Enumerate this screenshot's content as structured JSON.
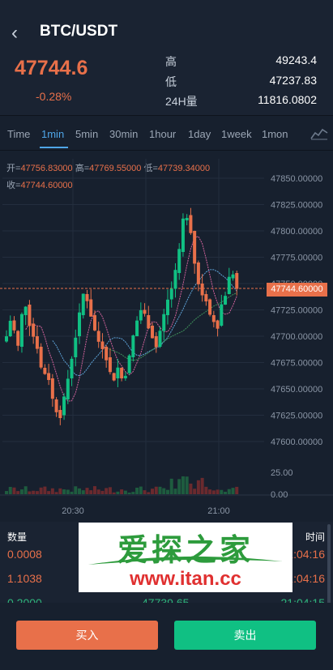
{
  "header": {
    "pair": "BTC/USDT",
    "price": "47744.6",
    "change": "-0.28%",
    "stats": [
      {
        "label": "高",
        "value": "49243.4"
      },
      {
        "label": "低",
        "value": "47237.83"
      },
      {
        "label": "24H量",
        "value": "11816.0802"
      }
    ]
  },
  "tabs": [
    "Time",
    "1min",
    "5min",
    "30min",
    "1hour",
    "1day",
    "1week",
    "1mon"
  ],
  "active_tab": "1min",
  "ohlc": {
    "open_label": "开=",
    "open": "47756.83000",
    "high_label": "高=",
    "high": "47769.55000",
    "low_label": "低=",
    "low": "47739.34000",
    "close_label": "收=",
    "close": "47744.60000"
  },
  "chart_data": {
    "type": "candlestick",
    "y_ticks": [
      "47850.00000",
      "47825.00000",
      "47800.00000",
      "47775.00000",
      "47750.00000",
      "47725.00000",
      "47700.00000",
      "47675.00000",
      "47650.00000",
      "47625.00000",
      "47600.00000"
    ],
    "ylim": [
      47600,
      47850
    ],
    "current_price_label": "47744.60000",
    "volume_ticks": [
      "25.00",
      "0.00"
    ],
    "x_ticks": [
      "20:30",
      "21:00"
    ],
    "grid": true
  },
  "trades": {
    "headers": {
      "qty": "数量",
      "time": "时间"
    },
    "rows": [
      {
        "qty": "0.0008",
        "price": "",
        "time": "21:04:16",
        "side": "sell"
      },
      {
        "qty": "1.1038",
        "price": "",
        "time": "21:04:16",
        "side": "sell"
      },
      {
        "qty": "0.2000",
        "price": "47739.65",
        "time": "21:04:15",
        "side": "buy"
      }
    ]
  },
  "watermark": {
    "title": "爱探之家",
    "url": "www.itan.cc"
  },
  "actions": {
    "buy": "买入",
    "sell": "卖出"
  },
  "colors": {
    "up": "#10c083",
    "down": "#e8704a",
    "accent": "#4fa6e8"
  }
}
